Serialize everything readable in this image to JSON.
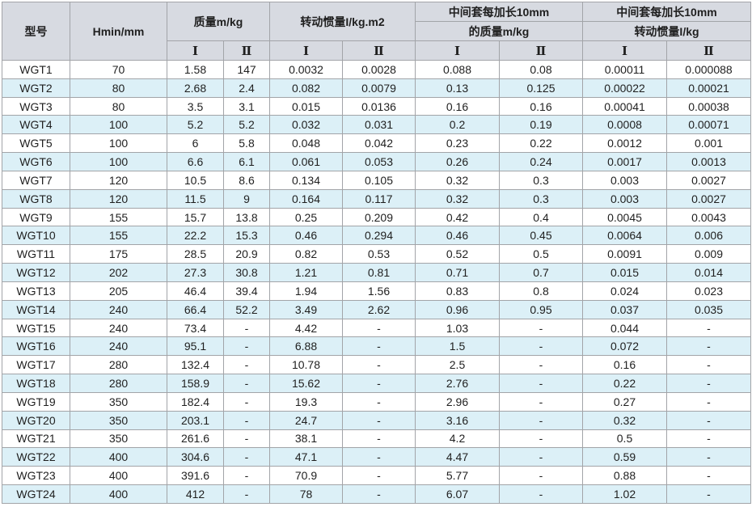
{
  "colors": {
    "header_bg": "#d7dae1",
    "stripe_bg": "#dcf0f7",
    "row_bg": "#ffffff",
    "border_color": "#a2a4a8",
    "text_color": "#1f1f1f",
    "page_bg": "#ffffff"
  },
  "table": {
    "header": {
      "model": "型号",
      "hmin": "Hmin/mm",
      "mass_group": "质量m/kg",
      "inertia_group": "转动惯量I/kg.m2",
      "ext_mass_line1": "中间套每加长10mm",
      "ext_mass_line2": "的质量m/kg",
      "ext_inertia_line1": "中间套每加长10mm",
      "ext_inertia_line2": "转动惯量I/kg",
      "sub_I": "Ⅰ",
      "sub_II": "Ⅱ"
    },
    "rows": [
      [
        "WGT1",
        "70",
        "1.58",
        "147",
        "0.0032",
        "0.0028",
        "0.088",
        "0.08",
        "0.00011",
        "0.000088"
      ],
      [
        "WGT2",
        "80",
        "2.68",
        "2.4",
        "0.082",
        "0.0079",
        "0.13",
        "0.125",
        "0.00022",
        "0.00021"
      ],
      [
        "WGT3",
        "80",
        "3.5",
        "3.1",
        "0.015",
        "0.0136",
        "0.16",
        "0.16",
        "0.00041",
        "0.00038"
      ],
      [
        "WGT4",
        "100",
        "5.2",
        "5.2",
        "0.032",
        "0.031",
        "0.2",
        "0.19",
        "0.0008",
        "0.00071"
      ],
      [
        "WGT5",
        "100",
        "6",
        "5.8",
        "0.048",
        "0.042",
        "0.23",
        "0.22",
        "0.0012",
        "0.001"
      ],
      [
        "WGT6",
        "100",
        "6.6",
        "6.1",
        "0.061",
        "0.053",
        "0.26",
        "0.24",
        "0.0017",
        "0.0013"
      ],
      [
        "WGT7",
        "120",
        "10.5",
        "8.6",
        "0.134",
        "0.105",
        "0.32",
        "0.3",
        "0.003",
        "0.0027"
      ],
      [
        "WGT8",
        "120",
        "11.5",
        "9",
        "0.164",
        "0.117",
        "0.32",
        "0.3",
        "0.003",
        "0.0027"
      ],
      [
        "WGT9",
        "155",
        "15.7",
        "13.8",
        "0.25",
        "0.209",
        "0.42",
        "0.4",
        "0.0045",
        "0.0043"
      ],
      [
        "WGT10",
        "155",
        "22.2",
        "15.3",
        "0.46",
        "0.294",
        "0.46",
        "0.45",
        "0.0064",
        "0.006"
      ],
      [
        "WGT11",
        "175",
        "28.5",
        "20.9",
        "0.82",
        "0.53",
        "0.52",
        "0.5",
        "0.0091",
        "0.009"
      ],
      [
        "WGT12",
        "202",
        "27.3",
        "30.8",
        "1.21",
        "0.81",
        "0.71",
        "0.7",
        "0.015",
        "0.014"
      ],
      [
        "WGT13",
        "205",
        "46.4",
        "39.4",
        "1.94",
        "1.56",
        "0.83",
        "0.8",
        "0.024",
        "0.023"
      ],
      [
        "WGT14",
        "240",
        "66.4",
        "52.2",
        "3.49",
        "2.62",
        "0.96",
        "0.95",
        "0.037",
        "0.035"
      ],
      [
        "WGT15",
        "240",
        "73.4",
        "-",
        "4.42",
        "-",
        "1.03",
        "-",
        "0.044",
        "-"
      ],
      [
        "WGT16",
        "240",
        "95.1",
        "-",
        "6.88",
        "-",
        "1.5",
        "-",
        "0.072",
        "-"
      ],
      [
        "WGT17",
        "280",
        "132.4",
        "-",
        "10.78",
        "-",
        "2.5",
        "-",
        "0.16",
        "-"
      ],
      [
        "WGT18",
        "280",
        "158.9",
        "-",
        "15.62",
        "-",
        "2.76",
        "-",
        "0.22",
        "-"
      ],
      [
        "WGT19",
        "350",
        "182.4",
        "-",
        "19.3",
        "-",
        "2.96",
        "-",
        "0.27",
        "-"
      ],
      [
        "WGT20",
        "350",
        "203.1",
        "-",
        "24.7",
        "-",
        "3.16",
        "-",
        "0.32",
        "-"
      ],
      [
        "WGT21",
        "350",
        "261.6",
        "-",
        "38.1",
        "-",
        "4.2",
        "-",
        "0.5",
        "-"
      ],
      [
        "WGT22",
        "400",
        "304.6",
        "-",
        "47.1",
        "-",
        "4.47",
        "-",
        "0.59",
        "-"
      ],
      [
        "WGT23",
        "400",
        "391.6",
        "-",
        "70.9",
        "-",
        "5.77",
        "-",
        "0.88",
        "-"
      ],
      [
        "WGT24",
        "400",
        "412",
        "-",
        "78",
        "-",
        "6.07",
        "-",
        "1.02",
        "-"
      ]
    ]
  }
}
